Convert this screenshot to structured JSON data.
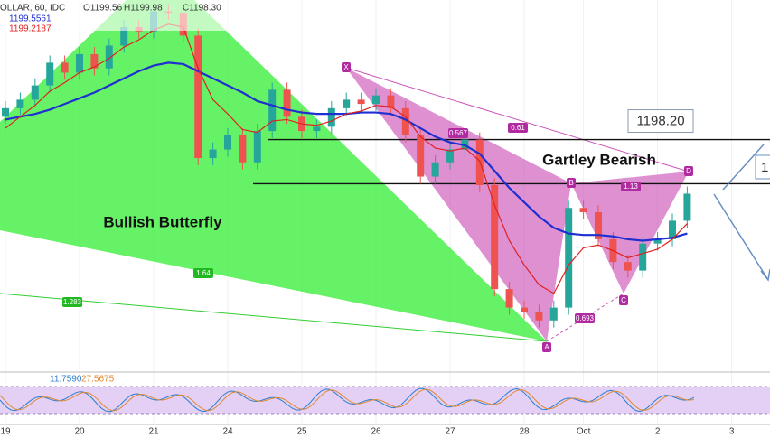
{
  "chart_data": {
    "type": "candlestick",
    "title": "OLLAR, 60, IDC",
    "header": {
      "open": "O1199.56",
      "high": "H1199.98",
      "close": "C1198.30",
      "indicators": [
        "1199.5561",
        "1199.2187"
      ],
      "oscillator": [
        "11.7590",
        "27.5675"
      ]
    },
    "x": [
      "19",
      null,
      null,
      null,
      null,
      "20",
      null,
      null,
      null,
      null,
      "21",
      null,
      null,
      null,
      null,
      "24",
      null,
      null,
      null,
      null,
      "25",
      null,
      null,
      null,
      null,
      "26",
      null,
      null,
      null,
      null,
      "27",
      null,
      null,
      null,
      null,
      "28",
      null,
      null,
      null,
      "Oct",
      null,
      null,
      null,
      null,
      "2",
      null,
      null,
      null,
      null,
      "3"
    ],
    "open": [
      1199.8,
      1200.4,
      1201.0,
      1202.0,
      1203.6,
      1202.9,
      1204.2,
      1203.2,
      1204.8,
      1206.1,
      1205.8,
      1207.2,
      1207.1,
      1205.5,
      1196.9,
      1197.5,
      1198.5,
      1196.6,
      1198.8,
      1201.7,
      1199.8,
      1198.8,
      1199.1,
      1200.4,
      1201.0,
      1200.7,
      1201.3,
      1200.4,
      1198.5,
      1195.6,
      1196.6,
      1197.5,
      1198.2,
      1195.0,
      1187.7,
      1186.4,
      1186.1,
      1185.5,
      1186.4,
      1193.4,
      1193.1,
      1191.2,
      1189.6,
      1189.0,
      1190.9,
      1191.2,
      1192.5,
      null,
      null,
      null
    ],
    "high": [
      1200.9,
      1201.5,
      1202.5,
      1204.1,
      1204.1,
      1204.7,
      1204.7,
      1205.3,
      1206.6,
      1206.6,
      1207.7,
      1207.7,
      1207.6,
      1206.0,
      1198.0,
      1199.0,
      1199.0,
      1199.3,
      1202.2,
      1202.2,
      1200.3,
      1199.6,
      1200.9,
      1201.5,
      1201.5,
      1201.8,
      1201.8,
      1200.9,
      1199.0,
      1197.1,
      1198.0,
      1198.7,
      1198.7,
      1195.5,
      1188.2,
      1186.9,
      1186.6,
      1186.9,
      1193.9,
      1193.9,
      1193.6,
      1191.7,
      1190.1,
      1191.4,
      1191.7,
      1193.0,
      1194.9,
      null,
      null,
      null
    ],
    "low": [
      1199.3,
      1199.9,
      1200.5,
      1201.5,
      1202.4,
      1202.4,
      1202.7,
      1202.7,
      1204.3,
      1205.3,
      1205.3,
      1206.6,
      1205.0,
      1196.4,
      1196.4,
      1197.0,
      1196.1,
      1196.1,
      1198.3,
      1199.3,
      1198.3,
      1198.3,
      1198.6,
      1199.9,
      1200.2,
      1200.2,
      1199.9,
      1198.0,
      1195.1,
      1195.1,
      1196.1,
      1197.0,
      1194.5,
      1187.2,
      1185.9,
      1185.6,
      1185.0,
      1185.0,
      1185.9,
      1192.6,
      1190.7,
      1189.1,
      1188.5,
      1188.5,
      1190.4,
      1190.7,
      1192.0,
      null,
      null,
      null
    ],
    "close": [
      1200.4,
      1201.0,
      1202.0,
      1203.6,
      1202.9,
      1204.2,
      1203.2,
      1204.8,
      1206.1,
      1205.8,
      1207.2,
      1207.1,
      1205.5,
      1196.9,
      1197.5,
      1198.5,
      1196.6,
      1198.8,
      1201.7,
      1199.8,
      1198.8,
      1199.1,
      1200.4,
      1201.0,
      1200.7,
      1201.3,
      1200.4,
      1198.5,
      1195.6,
      1196.6,
      1197.5,
      1198.2,
      1195.0,
      1187.7,
      1186.4,
      1186.1,
      1185.5,
      1186.4,
      1193.4,
      1193.1,
      1191.2,
      1189.6,
      1189.0,
      1190.9,
      1191.2,
      1192.5,
      1194.4,
      null,
      null,
      null
    ],
    "up_color": "#26a69a",
    "down_color": "#ef5350",
    "moving_averages": [
      {
        "color": "#1f2fd0",
        "values": [
          1199.6,
          1199.8,
          1200.0,
          1200.3,
          1200.7,
          1201.1,
          1201.5,
          1202.0,
          1202.5,
          1203.0,
          1203.4,
          1203.6,
          1203.5,
          1203.0,
          1202.5,
          1202.0,
          1201.5,
          1200.9,
          1200.6,
          1200.3,
          1200.1,
          1200.0,
          1200.0,
          1200.0,
          1200.1,
          1200.1,
          1200.0,
          1199.6,
          1199.0,
          1198.4,
          1198.0,
          1197.8,
          1197.2,
          1196.0,
          1194.8,
          1193.8,
          1192.8,
          1192.0,
          1191.6,
          1191.5,
          1191.5,
          1191.4,
          1191.2,
          1191.1,
          1191.2,
          1191.3,
          1191.6,
          null,
          null,
          null
        ]
      },
      {
        "color": "#e0201e",
        "values": [
          1199.0,
          1199.8,
          1200.6,
          1201.6,
          1202.2,
          1202.9,
          1203.3,
          1203.9,
          1204.7,
          1205.2,
          1205.9,
          1206.3,
          1206.1,
          1203.2,
          1201.0,
          1200.0,
          1198.9,
          1198.7,
          1199.5,
          1199.6,
          1199.3,
          1199.2,
          1199.5,
          1200.0,
          1200.2,
          1200.6,
          1200.5,
          1199.8,
          1198.4,
          1197.6,
          1197.4,
          1197.6,
          1196.7,
          1193.6,
          1191.1,
          1189.4,
          1188.0,
          1187.4,
          1189.4,
          1190.6,
          1190.8,
          1190.4,
          1189.9,
          1190.2,
          1190.5,
          1191.2,
          1192.3,
          null,
          null,
          null
        ]
      }
    ],
    "ylim": [
      1182,
      1208
    ],
    "levels": [
      {
        "value": 1198.2,
        "label": "1198.20"
      },
      {
        "value": 1195.1
      }
    ],
    "annotations": {
      "butterfly": "Bullish Butterfly",
      "gartley": "Gartley Bearish",
      "points": [
        "X",
        "A",
        "B",
        "C",
        "D"
      ],
      "ratios": [
        "0.567",
        "0.61",
        "1.13",
        "0.693",
        "1.64",
        "1.283"
      ]
    }
  }
}
